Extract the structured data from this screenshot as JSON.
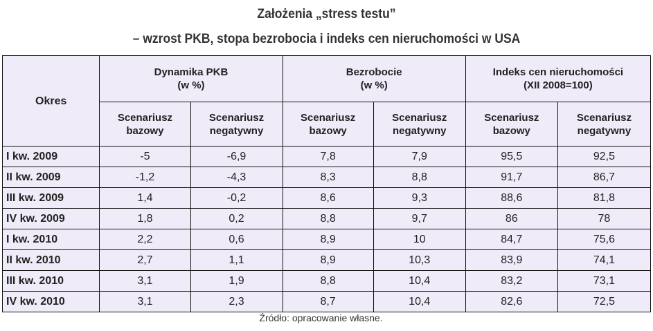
{
  "title": {
    "line1": "Założenia „stress testu”",
    "line2": "– wzrost PKB, stopa bezrobocia i indeks cen nieruchomości w USA"
  },
  "table": {
    "period_header": "Okres",
    "groups": [
      {
        "name": "Dynamika PKB",
        "unit": "(w %)"
      },
      {
        "name": "Bezrobocie",
        "unit": "(w %)"
      },
      {
        "name": "Indeks cen nieruchomości",
        "unit": "(XII 2008=100)"
      }
    ],
    "sub_headers": [
      {
        "line1": "Scenariusz",
        "line2": "bazowy"
      },
      {
        "line1": "Scenariusz",
        "line2": "negatywny"
      },
      {
        "line1": "Scenariusz",
        "line2": "bazowy"
      },
      {
        "line1": "Scenariusz",
        "line2": "negatywny"
      },
      {
        "line1": "Scenariusz",
        "line2": "bazowy"
      },
      {
        "line1": "Scenariusz",
        "line2": "negatywny"
      }
    ],
    "rows": [
      {
        "period": "I kw. 2009",
        "values": [
          "-5",
          "-6,9",
          "7,8",
          "7,9",
          "95,5",
          "92,5"
        ]
      },
      {
        "period": "II kw. 2009",
        "values": [
          "-1,2",
          "-4,3",
          "8,3",
          "8,8",
          "91,7",
          "86,7"
        ]
      },
      {
        "period": "III kw. 2009",
        "values": [
          "1,4",
          "-0,2",
          "8,6",
          "9,3",
          "88,6",
          "81,8"
        ]
      },
      {
        "period": "IV kw. 2009",
        "values": [
          "1,8",
          "0,2",
          "8,8",
          "9,7",
          "86",
          "78"
        ]
      },
      {
        "period": "I kw. 2010",
        "values": [
          "2,2",
          "0,6",
          "8,9",
          "10",
          "84,7",
          "75,6"
        ]
      },
      {
        "period": "II kw. 2010",
        "values": [
          "2,7",
          "1,1",
          "8,9",
          "10,3",
          "83,9",
          "74,1"
        ]
      },
      {
        "period": "III kw. 2010",
        "values": [
          "3,1",
          "1,9",
          "8,8",
          "10,4",
          "83,2",
          "73,1"
        ]
      },
      {
        "period": "IV kw. 2010",
        "values": [
          "3,1",
          "2,3",
          "8,7",
          "10,4",
          "82,6",
          "72,5"
        ]
      }
    ]
  },
  "source": "Źródło: opracowanie własne.",
  "colors": {
    "table_background": "#efebf9",
    "border": "#111111",
    "text": "#222222"
  }
}
